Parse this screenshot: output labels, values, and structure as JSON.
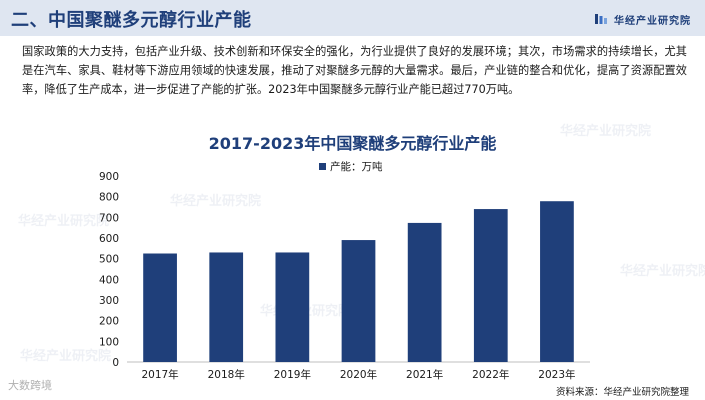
{
  "header": {
    "title": "二、中国聚醚多元醇行业产能",
    "brand": "华经产业研究院"
  },
  "intro_text": "国家政策的大力支持，包括产业升级、技术创新和环保安全的强化，为行业提供了良好的发展环境；其次，市场需求的持续增长，尤其是在汽车、家具、鞋材等下游应用领域的快速发展，推动了对聚醚多元醇的大量需求。最后，产业链的整合和优化，提高了资源配置效率，降低了生产成本，进一步促进了产能的扩张。2023年中国聚醚多元醇行业产能已超过770万吨。",
  "watermarks": [
    "华经产业研究院",
    "华经产业研究院",
    "华经产业研究院",
    "华经产业研究院",
    "华经产业研究院",
    "华经产业研究院"
  ],
  "bottom_watermark": "大数跨境",
  "source": "资料来源：华经产业研究院整理",
  "colors": {
    "bar": "#1f3f7a",
    "header_bg": "#dfe6f1",
    "title": "#1f3f7a"
  },
  "chart_data": {
    "type": "bar",
    "title": "2017-2023年中国聚醚多元醇行业产能",
    "categories": [
      "2017年",
      "2018年",
      "2019年",
      "2020年",
      "2021年",
      "2022年",
      "2023年"
    ],
    "series": [
      {
        "name": "产能：万吨",
        "values": [
          525,
          530,
          530,
          590,
          673,
          740,
          778
        ]
      }
    ],
    "ylim": [
      0,
      900
    ],
    "yticks": [
      0,
      100,
      200,
      300,
      400,
      500,
      600,
      700,
      800,
      900
    ],
    "legend": "top-left",
    "grid": false
  }
}
